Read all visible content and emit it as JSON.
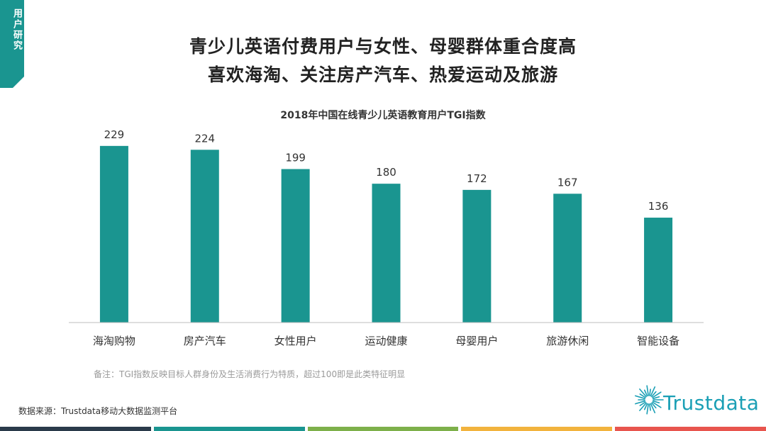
{
  "section_tab": {
    "label": "用户研究",
    "color": "#1a9590"
  },
  "headline": {
    "line1": "青少儿英语付费用户与女性、母婴群体重合度高",
    "line2": "喜欢海淘、关注房产汽车、热爱运动及旅游"
  },
  "chart_data": {
    "type": "bar",
    "title": "2018年中国在线青少儿英语教育用户TGI指数",
    "categories": [
      "海淘购物",
      "房产汽车",
      "女性用户",
      "运动健康",
      "母婴用户",
      "旅游休闲",
      "智能设备"
    ],
    "values": [
      229,
      224,
      199,
      180,
      172,
      167,
      136
    ],
    "xlabel": "",
    "ylabel": "",
    "ylim": [
      0,
      250
    ],
    "bar_color": "#1a9590",
    "grid": false,
    "data_labels": true
  },
  "note": "备注：TGI指数反映目标人群身份及生活消费行为特质，超过100即是此类特征明显",
  "source": "数据来源：Trustdata移动大数据监测平台",
  "logo": {
    "text": "Trustdata",
    "color": "#1a9fb5"
  },
  "bottom_bar_colors": [
    "#2a3a4a",
    "#1a9590",
    "#7db04a",
    "#f2b33d",
    "#e8554e"
  ]
}
